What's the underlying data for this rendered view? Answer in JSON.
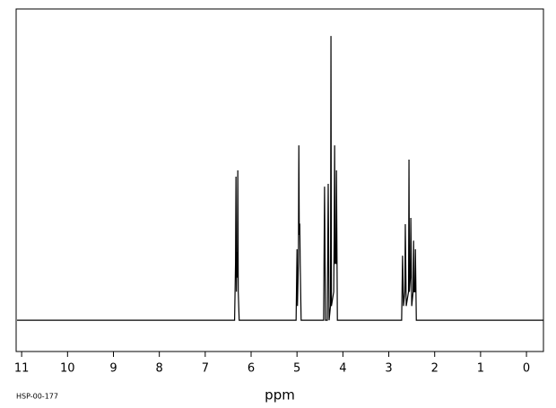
{
  "chart_data": {
    "type": "line",
    "x_label": "ppm",
    "annotation": "HSP-00-177",
    "xlim": [
      11.12,
      -0.37
    ],
    "xticks": [
      11,
      10,
      9,
      8,
      7,
      6,
      5,
      4,
      3,
      2,
      1,
      0
    ],
    "ylim": [
      -11,
      109.5
    ],
    "series": [
      {
        "color": "#000000",
        "x": [
          11.1,
          6.36,
          6.34,
          6.33,
          6.32,
          6.31,
          6.3,
          6.29,
          6.28,
          6.26,
          5.02,
          5.0,
          4.99,
          4.97,
          4.96,
          4.95,
          4.94,
          4.93,
          4.91,
          4.42,
          4.4,
          4.38,
          4.34,
          4.32,
          4.3,
          4.27,
          4.26,
          4.25,
          4.2,
          4.19,
          4.18,
          4.17,
          4.15,
          4.14,
          4.12,
          2.72,
          2.7,
          2.68,
          2.65,
          2.64,
          2.62,
          2.57,
          2.56,
          2.55,
          2.53,
          2.52,
          2.5,
          2.47,
          2.46,
          2.45,
          2.43,
          2.42,
          2.4,
          -0.36
        ],
        "values": [
          0,
          0,
          20,
          50.5,
          10,
          24,
          15,
          52.7,
          10,
          0,
          0,
          25,
          5,
          20,
          61.5,
          30,
          34,
          20,
          0,
          0,
          47,
          0,
          0,
          48,
          0,
          5,
          100,
          5,
          10,
          30,
          61.5,
          20,
          20,
          52.7,
          0,
          0,
          22.7,
          5,
          10,
          33.8,
          5,
          10,
          56.5,
          10,
          15,
          36,
          5,
          10,
          28,
          10,
          10,
          25,
          0,
          0
        ]
      }
    ]
  }
}
